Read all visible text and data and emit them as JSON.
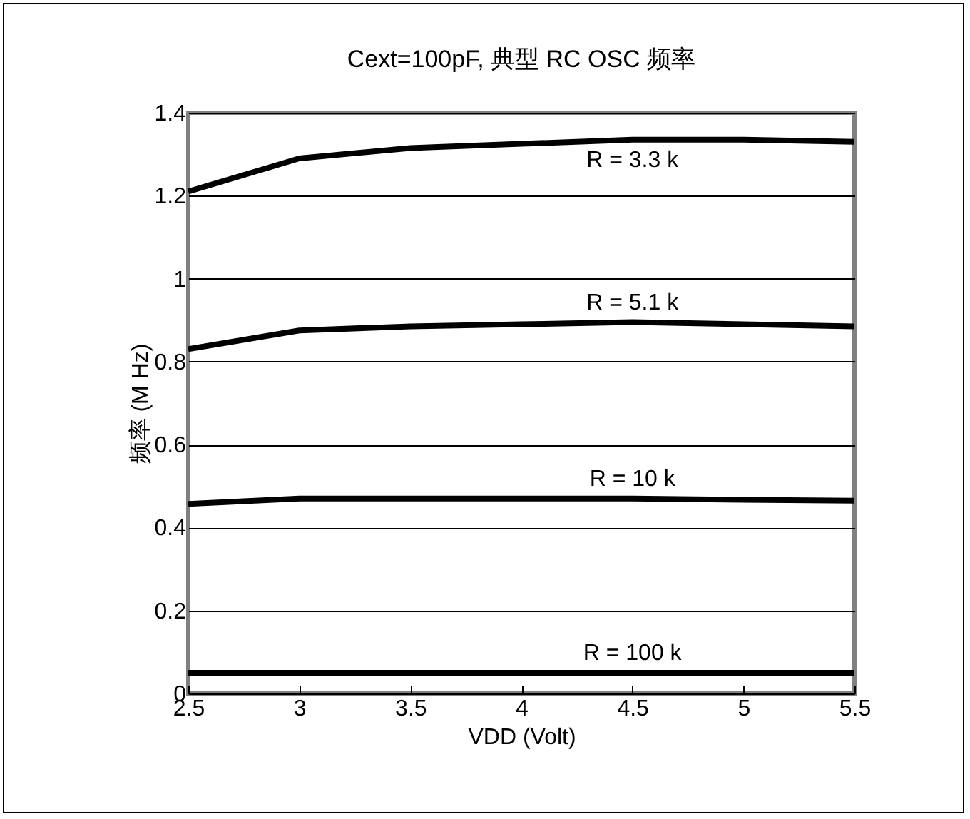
{
  "chart_data": {
    "type": "line",
    "title": "Cext=100pF, 典型 RC OSC 频率",
    "xlabel": "VDD (Volt)",
    "ylabel": "频率 (M Hz)",
    "x": [
      2.5,
      3,
      3.5,
      4,
      4.5,
      5,
      5.5
    ],
    "series": [
      {
        "name": "R = 3.3 k",
        "color": "#000000",
        "values": [
          1.21,
          1.29,
          1.315,
          1.325,
          1.335,
          1.335,
          1.33
        ]
      },
      {
        "name": "R = 5.1 k",
        "color": "#000000",
        "values": [
          0.83,
          0.875,
          0.885,
          0.89,
          0.895,
          0.89,
          0.885
        ]
      },
      {
        "name": "R = 10 k",
        "color": "#000000",
        "values": [
          0.457,
          0.47,
          0.47,
          0.47,
          0.47,
          0.467,
          0.465
        ]
      },
      {
        "name": "R = 100 k",
        "color": "#000000",
        "values": [
          0.05,
          0.05,
          0.05,
          0.05,
          0.05,
          0.05,
          0.05
        ]
      }
    ],
    "xlim": [
      2.5,
      5.5
    ],
    "xticks": [
      2.5,
      3,
      3.5,
      4,
      4.5,
      5,
      5.5
    ],
    "ylim": [
      0,
      1.4
    ],
    "yticks": [
      0,
      0.2,
      0.4,
      0.6,
      0.8,
      1,
      1.2,
      1.4
    ],
    "grid": "y",
    "legend": false,
    "marker": "none",
    "line_style": "solid"
  }
}
